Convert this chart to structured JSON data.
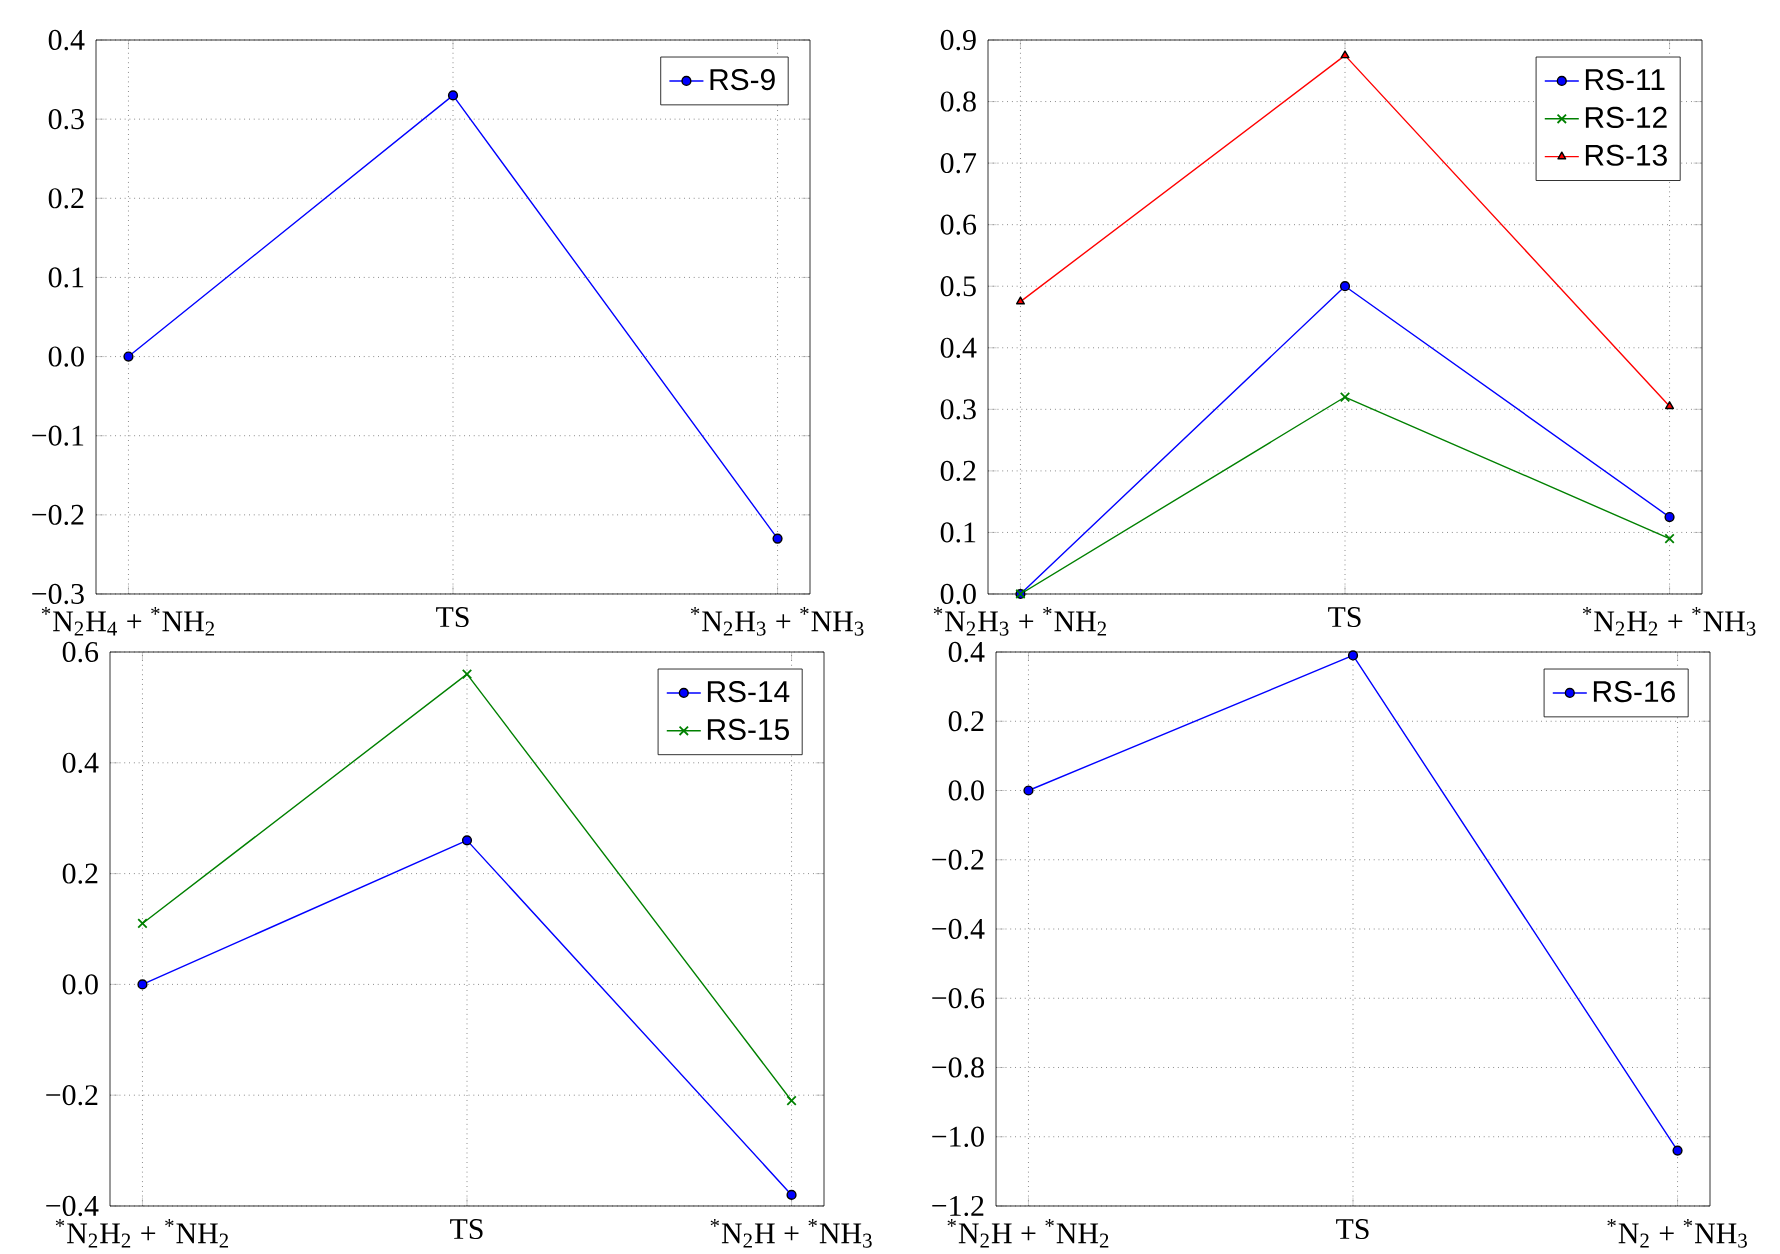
{
  "chart_data": [
    {
      "type": "line",
      "categories": [
        "$^{*}$N$_{2}$H$_{4}$ + $^{*}$NH$_{2}$",
        "TS",
        "$^{*}$N$_{2}$H$_{3}$ + $^{*}$NH$_{3}$"
      ],
      "ylim": [
        -0.3,
        0.4
      ],
      "yticks": [
        {
          "value": -0.3,
          "label": "−0.3"
        },
        {
          "value": -0.2,
          "label": "−0.2"
        },
        {
          "value": -0.1,
          "label": "−0.1"
        },
        {
          "value": 0,
          "label": "0.0"
        },
        0.1,
        0.2,
        0.3,
        0.4
      ],
      "grid": true,
      "legend": "top right",
      "series": [
        {
          "name": "RS-9",
          "color": "#0000ff",
          "marker": "circle",
          "values": [
            0.0,
            0.33,
            -0.23
          ]
        }
      ]
    },
    {
      "type": "line",
      "categories": [
        "$^{*}$N$_{2}$H$_{3}$ + $^{*}$NH$_{2}$",
        "TS",
        "$^{*}$N$_{2}$H$_{2}$ + $^{*}$NH$_{3}$"
      ],
      "ylim": [
        0.0,
        0.9
      ],
      "yticks": [
        {
          "value": 0,
          "label": "0.0"
        },
        0.1,
        0.2,
        0.3,
        0.4,
        0.5,
        0.6,
        0.7,
        0.8,
        0.9
      ],
      "grid": true,
      "legend": "top right",
      "series": [
        {
          "name": "RS-11",
          "color": "#0000ff",
          "marker": "circle",
          "values": [
            0.0,
            0.5,
            0.125
          ]
        },
        {
          "name": "RS-12",
          "color": "#008000",
          "marker": "cross",
          "values": [
            0.0,
            0.32,
            0.09
          ]
        },
        {
          "name": "RS-13",
          "color": "#ff0000",
          "marker": "triangle",
          "values": [
            0.475,
            0.875,
            0.305
          ]
        }
      ]
    },
    {
      "type": "line",
      "categories": [
        "$^{*}$N$_{2}$H$_{2}$ + $^{*}$NH$_{2}$",
        "TS",
        "$^{*}$N$_{2}$H + $^{*}$NH$_{3}$"
      ],
      "ylim": [
        -0.4,
        0.6
      ],
      "yticks": [
        {
          "value": -0.4,
          "label": "−0.4"
        },
        {
          "value": -0.2,
          "label": "−0.2"
        },
        {
          "value": 0,
          "label": "0.0"
        },
        0.2,
        0.4,
        0.6
      ],
      "grid": true,
      "legend": "top right",
      "series": [
        {
          "name": "RS-14",
          "color": "#0000ff",
          "marker": "circle",
          "values": [
            0.0,
            0.26,
            -0.38
          ]
        },
        {
          "name": "RS-15",
          "color": "#008000",
          "marker": "cross",
          "values": [
            0.11,
            0.56,
            -0.21
          ]
        }
      ]
    },
    {
      "type": "line",
      "categories": [
        "$^{*}$N$_{2}$H + $^{*}$NH$_{2}$",
        "TS",
        "$^{*}$N$_{2}$ + $^{*}$NH$_{3}$"
      ],
      "ylim": [
        -1.2,
        0.4
      ],
      "yticks": [
        {
          "value": -1.2,
          "label": "−1.2"
        },
        {
          "value": -1.0,
          "label": "−1.0"
        },
        {
          "value": -0.8,
          "label": "−0.8"
        },
        {
          "value": -0.6,
          "label": "−0.6"
        },
        {
          "value": -0.4,
          "label": "−0.4"
        },
        {
          "value": -0.2,
          "label": "−0.2"
        },
        {
          "value": 0,
          "label": "0.0"
        },
        0.2,
        0.4
      ],
      "grid": true,
      "legend": "top right",
      "series": [
        {
          "name": "RS-16",
          "color": "#0000ff",
          "marker": "circle",
          "values": [
            0.0,
            0.39,
            -1.04
          ]
        }
      ]
    }
  ]
}
